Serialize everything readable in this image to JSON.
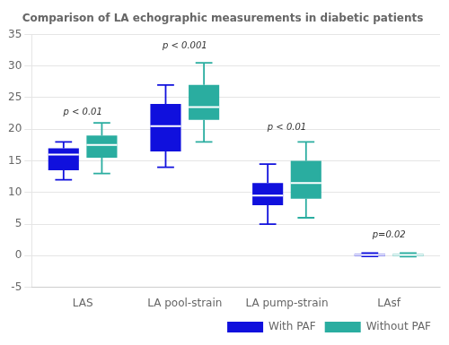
{
  "chart_data": {
    "type": "box",
    "title": "Comparison of LA echographic measurements in diabetic patients",
    "categories": [
      "LAS",
      "LA pool-strain",
      "LA pump-strain",
      "LAsf"
    ],
    "series": [
      {
        "name": "With PAF",
        "color": "#1010DD",
        "q1": [
          13.5,
          16.5,
          8.0,
          -0.1
        ],
        "median": [
          16.0,
          20.5,
          9.5,
          0.1
        ],
        "q3": [
          17.0,
          24.0,
          11.5,
          0.3
        ],
        "whislo": [
          12.0,
          14.0,
          5.0,
          -0.1
        ],
        "whishi": [
          18.0,
          27.0,
          14.5,
          0.4
        ]
      },
      {
        "name": "Without PAF",
        "color": "#2AADA0",
        "q1": [
          15.5,
          21.5,
          9.0,
          -0.1
        ],
        "median": [
          17.5,
          23.5,
          11.5,
          0.1
        ],
        "q3": [
          19.0,
          27.0,
          15.0,
          0.3
        ],
        "whislo": [
          13.0,
          18.0,
          6.0,
          -0.15
        ],
        "whishi": [
          21.0,
          30.5,
          18.0,
          0.4
        ]
      }
    ],
    "annotations": [
      {
        "text": "p < 0.01",
        "x": "LAS",
        "y": 22.0
      },
      {
        "text": "p < 0.001",
        "x": "LA pool-strain",
        "y": 32.5
      },
      {
        "text": "p < 0.01",
        "x": "LA pump-strain",
        "y": 19.5
      },
      {
        "text": "p=0.02",
        "x": "LAsf",
        "y": 2.5
      }
    ],
    "ylim": [
      -5,
      35
    ],
    "yticks": [
      -5,
      0,
      5,
      10,
      15,
      20,
      25,
      30,
      35
    ],
    "grid": true,
    "legend": "lower right"
  }
}
